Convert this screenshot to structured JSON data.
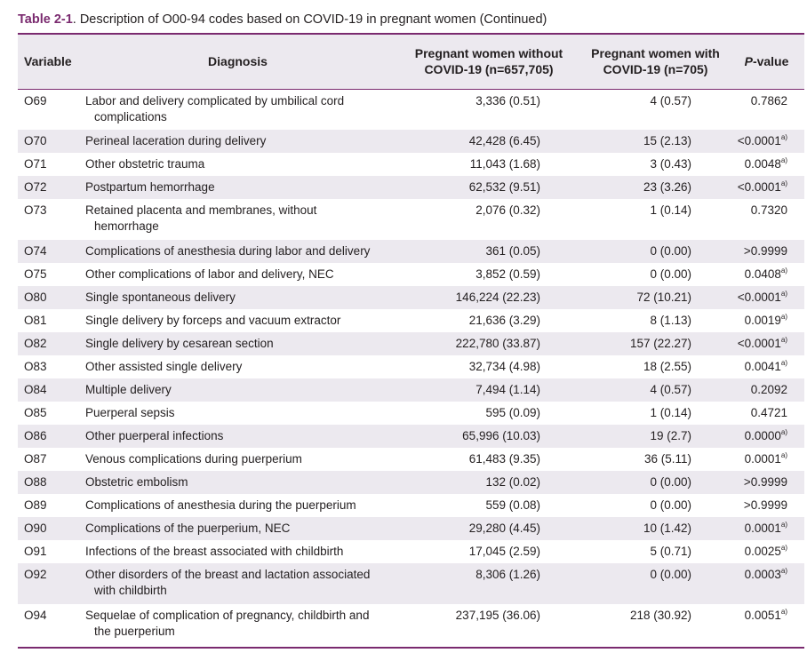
{
  "caption": {
    "lead": "Table 2-1",
    "text": ". Description of O00-94 codes based on COVID-19 in pregnant women (Continued)"
  },
  "headers": {
    "variable": "Variable",
    "diagnosis": "Diagnosis",
    "without_line1": "Pregnant women without",
    "without_line2": "COVID-19 (n=657,705)",
    "with_line1": "Pregnant women with",
    "with_line2": "COVID-19 (n=705)",
    "p_italic": "P",
    "p_rest": "-value"
  },
  "rows": [
    {
      "code": "O69",
      "dx1": "Labor and delivery complicated by umbilical cord",
      "dx2": "complications",
      "without": "3,336 (0.51)",
      "with": "4 (0.57)",
      "p": "0.7862",
      "sup": ""
    },
    {
      "code": "O70",
      "dx1": "Perineal laceration during delivery",
      "dx2": "",
      "without": "42,428 (6.45)",
      "with": "15 (2.13)",
      "p": "<0.0001",
      "sup": "a)"
    },
    {
      "code": "O71",
      "dx1": "Other obstetric trauma",
      "dx2": "",
      "without": "11,043 (1.68)",
      "with": "3 (0.43)",
      "p": "0.0048",
      "sup": "a)"
    },
    {
      "code": "O72",
      "dx1": "Postpartum hemorrhage",
      "dx2": "",
      "without": "62,532 (9.51)",
      "with": "23 (3.26)",
      "p": "<0.0001",
      "sup": "a)"
    },
    {
      "code": "O73",
      "dx1": "Retained placenta and membranes, without",
      "dx2": "hemorrhage",
      "without": "2,076 (0.32)",
      "with": "1 (0.14)",
      "p": "0.7320",
      "sup": ""
    },
    {
      "code": "O74",
      "dx1": "Complications of anesthesia during labor and delivery",
      "dx2": "",
      "without": "361 (0.05)",
      "with": "0 (0.00)",
      "p": ">0.9999",
      "sup": ""
    },
    {
      "code": "O75",
      "dx1": "Other complications of labor and delivery, NEC",
      "dx2": "",
      "without": "3,852 (0.59)",
      "with": "0 (0.00)",
      "p": "0.0408",
      "sup": "a)"
    },
    {
      "code": "O80",
      "dx1": "Single spontaneous delivery",
      "dx2": "",
      "without": "146,224 (22.23)",
      "with": "72 (10.21)",
      "p": "<0.0001",
      "sup": "a)"
    },
    {
      "code": "O81",
      "dx1": "Single delivery by forceps and vacuum extractor",
      "dx2": "",
      "without": "21,636 (3.29)",
      "with": "8 (1.13)",
      "p": "0.0019",
      "sup": "a)"
    },
    {
      "code": "O82",
      "dx1": "Single delivery by cesarean section",
      "dx2": "",
      "without": "222,780 (33.87)",
      "with": "157 (22.27)",
      "p": "<0.0001",
      "sup": "a)"
    },
    {
      "code": "O83",
      "dx1": "Other assisted single delivery",
      "dx2": "",
      "without": "32,734 (4.98)",
      "with": "18 (2.55)",
      "p": "0.0041",
      "sup": "a)"
    },
    {
      "code": "O84",
      "dx1": "Multiple delivery",
      "dx2": "",
      "without": "7,494 (1.14)",
      "with": "4 (0.57)",
      "p": "0.2092",
      "sup": ""
    },
    {
      "code": "O85",
      "dx1": "Puerperal sepsis",
      "dx2": "",
      "without": "595 (0.09)",
      "with": "1 (0.14)",
      "p": "0.4721",
      "sup": ""
    },
    {
      "code": "O86",
      "dx1": "Other puerperal infections",
      "dx2": "",
      "without": "65,996 (10.03)",
      "with": "19 (2.7)",
      "p": "0.0000",
      "sup": "a)"
    },
    {
      "code": "O87",
      "dx1": "Venous complications during puerperium",
      "dx2": "",
      "without": "61,483 (9.35)",
      "with": "36 (5.11)",
      "p": "0.0001",
      "sup": "a)"
    },
    {
      "code": "O88",
      "dx1": "Obstetric embolism",
      "dx2": "",
      "without": "132 (0.02)",
      "with": "0 (0.00)",
      "p": ">0.9999",
      "sup": ""
    },
    {
      "code": "O89",
      "dx1": "Complications of anesthesia during the puerperium",
      "dx2": "",
      "without": "559 (0.08)",
      "with": "0 (0.00)",
      "p": ">0.9999",
      "sup": ""
    },
    {
      "code": "O90",
      "dx1": "Complications of the puerperium, NEC",
      "dx2": "",
      "without": "29,280 (4.45)",
      "with": "10 (1.42)",
      "p": "0.0001",
      "sup": "a)"
    },
    {
      "code": "O91",
      "dx1": "Infections of the breast associated with childbirth",
      "dx2": "",
      "without": "17,045 (2.59)",
      "with": "5 (0.71)",
      "p": "0.0025",
      "sup": "a)"
    },
    {
      "code": "O92",
      "dx1": "Other disorders of the breast and lactation associated",
      "dx2": "with childbirth",
      "without": "8,306 (1.26)",
      "with": "0 (0.00)",
      "p": "0.0003",
      "sup": "a)"
    },
    {
      "code": "O94",
      "dx1": "Sequelae of complication of pregnancy, childbirth and",
      "dx2": "the puerperium",
      "without": "237,195 (36.06)",
      "with": "218 (30.92)",
      "p": "0.0051",
      "sup": "a)"
    }
  ]
}
